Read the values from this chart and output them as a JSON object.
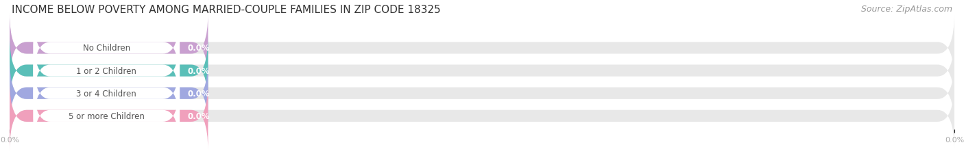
{
  "title": "INCOME BELOW POVERTY AMONG MARRIED-COUPLE FAMILIES IN ZIP CODE 18325",
  "source": "Source: ZipAtlas.com",
  "categories": [
    "No Children",
    "1 or 2 Children",
    "3 or 4 Children",
    "5 or more Children"
  ],
  "values": [
    0.0,
    0.0,
    0.0,
    0.0
  ],
  "bar_colors": [
    "#c9a0d0",
    "#5abfb8",
    "#a0a8e0",
    "#f0a0bc"
  ],
  "bar_bg_color": "#e8e8e8",
  "white_pill_color": "#ffffff",
  "background_color": "#ffffff",
  "title_fontsize": 11,
  "source_fontsize": 9,
  "label_fontsize": 8.5,
  "value_fontsize": 8.5,
  "category_text_color": "#555555",
  "value_text_color": "#ffffff",
  "tick_color": "#aaaaaa",
  "grid_color": "#dddddd"
}
